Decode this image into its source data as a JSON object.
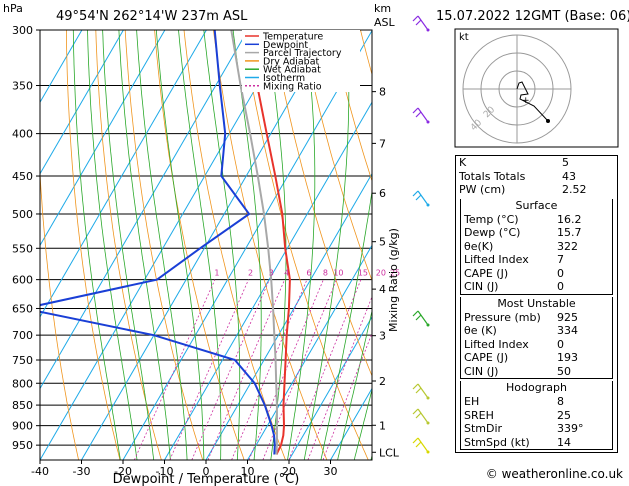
{
  "header": {
    "hpa_label": "hPa",
    "location": "49°54'N  262°14'W  237m  ASL",
    "km_label": "km",
    "asl_label": "ASL",
    "datetime": "15.07.2022  12GMT  (Base: 06)"
  },
  "credit": "© weatheronline.co.uk",
  "hodograph": {
    "label": "kt",
    "rings": [
      "20",
      "40"
    ]
  },
  "colors": {
    "temperature": "#e8332b",
    "dewpoint": "#1a3fd6",
    "parcel": "#a8a8a8",
    "dry_adiabat": "#f0951e",
    "wet_adiabat": "#2aa82a",
    "isotherm": "#1eaae8",
    "mixing_ratio": "#cc2fa0"
  },
  "chart_data": {
    "type": "line",
    "xlabel": "Dewpoint / Temperature (°C)",
    "ylabel_right": "Mixing Ratio (g/kg)",
    "x_ticks": [
      "-40",
      "-30",
      "-20",
      "-10",
      "0",
      "10",
      "20",
      "30"
    ],
    "xlim": [
      -40,
      40
    ],
    "pressure_levels": [
      "300",
      "350",
      "400",
      "450",
      "500",
      "550",
      "600",
      "650",
      "700",
      "750",
      "800",
      "850",
      "900",
      "950"
    ],
    "km_ticks": [
      "8",
      "7",
      "6",
      "5",
      "4",
      "3",
      "2",
      "1",
      "LCL"
    ],
    "mixing_ratio_labels": [
      "1",
      "2",
      "3",
      "4",
      "6",
      "8",
      "10",
      "15",
      "20",
      "25"
    ],
    "legend": [
      "Temperature",
      "Dewpoint",
      "Parcel Trajectory",
      "Dry Adiabat",
      "Wet Adiabat",
      "Isotherm",
      "Mixing Ratio"
    ],
    "series": [
      {
        "name": "Temperature",
        "p": [
          975,
          950,
          925,
          900,
          850,
          800,
          750,
          700,
          650,
          600,
          550,
          500,
          450,
          400,
          350,
          300
        ],
        "t": [
          16.2,
          16.0,
          15.2,
          14.0,
          11.0,
          8.2,
          5.2,
          2.0,
          -1.2,
          -5.0,
          -10.5,
          -16.0,
          -23.0,
          -31.0,
          -40.0,
          -49.0
        ]
      },
      {
        "name": "Dewpoint",
        "p": [
          975,
          950,
          925,
          900,
          850,
          800,
          750,
          700,
          650,
          600,
          550,
          500,
          450,
          400,
          350,
          300
        ],
        "t": [
          15.7,
          14.5,
          13.0,
          11.0,
          6.5,
          1.0,
          -7.0,
          -30.0,
          -65.0,
          -37.0,
          -31.0,
          -24.0,
          -36.0,
          -41.0,
          -49.0,
          -58.0
        ]
      },
      {
        "name": "Parcel Trajectory",
        "p": [
          975,
          950,
          900,
          850,
          800,
          750,
          700,
          650,
          600,
          550,
          500,
          450,
          400,
          350,
          300
        ],
        "t": [
          16.2,
          15.0,
          12.3,
          9.4,
          6.2,
          2.8,
          -1.0,
          -5.0,
          -9.5,
          -14.6,
          -20.4,
          -27.2,
          -35.0,
          -44.0,
          -54.0
        ]
      }
    ]
  },
  "indices": [
    {
      "label": "K",
      "value": "5"
    },
    {
      "label": "Totals Totals",
      "value": "43"
    },
    {
      "label": "PW (cm)",
      "value": "2.52"
    }
  ],
  "surface": {
    "title": "Surface",
    "rows": [
      {
        "label": "Temp (°C)",
        "value": "16.2"
      },
      {
        "label": "Dewp (°C)",
        "value": "15.7"
      },
      {
        "label": "θe(K)",
        "value": "322"
      },
      {
        "label": "Lifted Index",
        "value": "7"
      },
      {
        "label": "CAPE (J)",
        "value": "0"
      },
      {
        "label": "CIN (J)",
        "value": "0"
      }
    ]
  },
  "most_unstable": {
    "title": "Most Unstable",
    "rows": [
      {
        "label": "Pressure (mb)",
        "value": "925"
      },
      {
        "label": "θe (K)",
        "value": "334"
      },
      {
        "label": "Lifted Index",
        "value": "0"
      },
      {
        "label": "CAPE (J)",
        "value": "193"
      },
      {
        "label": "CIN (J)",
        "value": "50"
      }
    ]
  },
  "hodograph_table": {
    "title": "Hodograph",
    "rows": [
      {
        "label": "EH",
        "value": "8"
      },
      {
        "label": "SREH",
        "value": "25"
      },
      {
        "label": "StmDir",
        "value": "339°"
      },
      {
        "label": "StmSpd (kt)",
        "value": "14"
      }
    ]
  }
}
